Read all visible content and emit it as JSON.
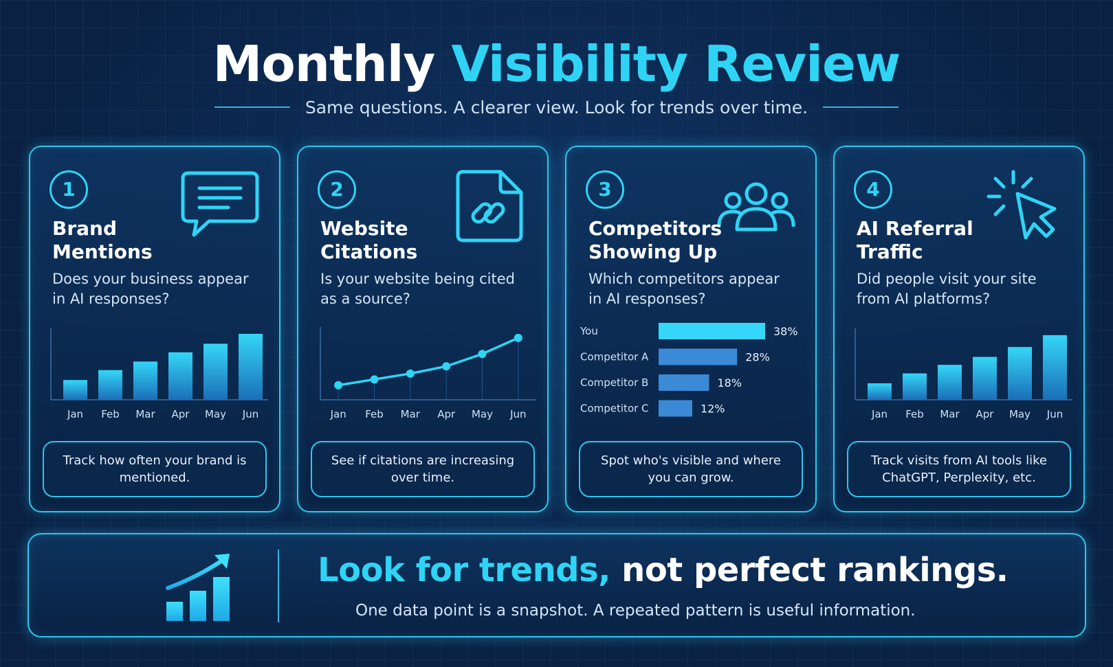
{
  "header": {
    "title_plain": "Monthly",
    "title_accent": "Visibility Review",
    "subtitle": "Same questions. A clearer view. Look for trends over time."
  },
  "colors": {
    "accent": "#2fd4f5",
    "border": "#2fc6ee",
    "background": "#0a2143"
  },
  "cards": [
    {
      "number": "1",
      "title": "Brand Mentions",
      "question": "Does your business appear in AI responses?",
      "note": "Track how often your brand is mentioned.",
      "icon": "chat-bubble-icon"
    },
    {
      "number": "2",
      "title": "Website Citations",
      "question": "Is your website being cited as a source?",
      "note": "See if citations are increasing over time.",
      "icon": "document-link-icon"
    },
    {
      "number": "3",
      "title": "Competitors Showing Up",
      "question": "Which competitors appear in AI responses?",
      "note": "Spot who's visible and where you can grow.",
      "icon": "users-group-icon"
    },
    {
      "number": "4",
      "title": "AI Referral Traffic",
      "question": "Did people visit your site from AI platforms?",
      "note": "Track visits from AI tools like ChatGPT, Perplexity, etc.",
      "icon": "cursor-click-icon"
    }
  ],
  "chart_data": [
    {
      "type": "bar",
      "categories": [
        "Jan",
        "Feb",
        "Mar",
        "Apr",
        "May",
        "Jun"
      ],
      "values": [
        30,
        45,
        58,
        72,
        85,
        100
      ],
      "ylim": [
        0,
        100
      ],
      "grid": false
    },
    {
      "type": "line",
      "categories": [
        "Jan",
        "Feb",
        "Mar",
        "Apr",
        "May",
        "Jun"
      ],
      "values": [
        20,
        28,
        36,
        46,
        63,
        85
      ],
      "ylim": [
        0,
        100
      ],
      "grid": true
    },
    {
      "type": "bar",
      "orientation": "horizontal",
      "categories": [
        "You",
        "Competitor A",
        "Competitor B",
        "Competitor C"
      ],
      "values": [
        38,
        28,
        18,
        12
      ],
      "value_labels": [
        "38%",
        "28%",
        "18%",
        "12%"
      ],
      "xlim": [
        0,
        38
      ]
    },
    {
      "type": "bar",
      "categories": [
        "Jan",
        "Feb",
        "Mar",
        "Apr",
        "May",
        "Jun"
      ],
      "values": [
        25,
        40,
        53,
        65,
        80,
        98
      ],
      "ylim": [
        0,
        100
      ],
      "grid": false
    }
  ],
  "footer": {
    "head_accent": "Look for trends,",
    "head_plain": "not perfect rankings.",
    "sub": "One data point is a snapshot. A repeated pattern is useful information.",
    "icon": "trend-up-chart-icon"
  }
}
